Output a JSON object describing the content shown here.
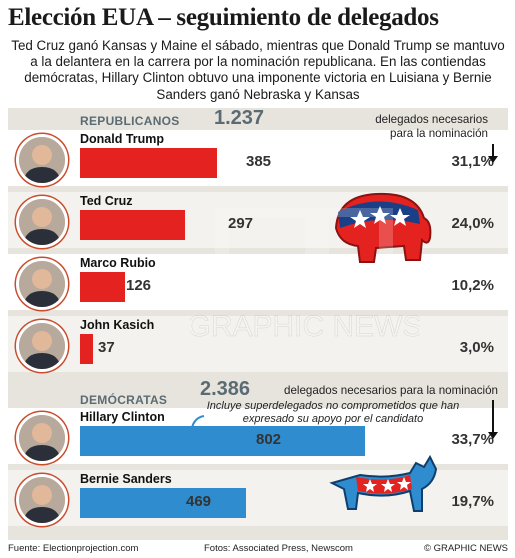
{
  "title": "Elección EUA – seguimiento de delegados",
  "subtitle": "Ted Cruz ganó Kansas y Maine el sábado, mientras que Donald Trump se mantuvo a la delantera en la carrera por la nominación republicana. En las contiendas demócratas, Hillary Clinton obtuvo una imponente victoria en Luisiana y Bernie Sanders ganó Nebraska y Kansas",
  "chart_data": {
    "type": "bar",
    "panels": [
      {
        "label": "REPUBLICANOS",
        "threshold": "1.237",
        "threshold_note_line1": "delegados necesarios",
        "threshold_note_line2": "para la nominación",
        "color": "#e42320",
        "candidates": [
          {
            "name": "Donald Trump",
            "value": 385,
            "value_label": "385",
            "pct_label": "31,1%"
          },
          {
            "name": "Ted Cruz",
            "value": 297,
            "value_label": "297",
            "pct_label": "24,0%"
          },
          {
            "name": "Marco Rubio",
            "value": 126,
            "value_label": "126",
            "pct_label": "10,2%"
          },
          {
            "name": "John Kasich",
            "value": 37,
            "value_label": "37",
            "pct_label": "3,0%"
          }
        ]
      },
      {
        "label": "DEMÓCRATAS",
        "threshold": "2.386",
        "threshold_note": "delegados necesarios para la nominación",
        "superdelegate_note": "Incluye superdelegados no comprometidos que han expresado su apoyo por el candidato",
        "color": "#2e8ccf",
        "candidates": [
          {
            "name": "Hillary Clinton",
            "value": 802,
            "value_label": "802",
            "pct_label": "33,7%"
          },
          {
            "name": "Bernie Sanders",
            "value": 469,
            "value_label": "469",
            "pct_label": "19,7%"
          }
        ]
      }
    ]
  },
  "footer": {
    "source": "Fuente: Electionprojection.com",
    "photos": "Fotos: Associated Press, Newscom",
    "credit": "© GRAPHIC NEWS"
  },
  "watermark": "GRAPHIC NEWS",
  "colors": {
    "republican": "#e42320",
    "democrat": "#2e8ccf",
    "label_grey": "#5b6b73",
    "panel": "#e7e4de"
  },
  "icons": [
    "elephant-icon",
    "donkey-icon",
    "candidate-photo-icon"
  ]
}
